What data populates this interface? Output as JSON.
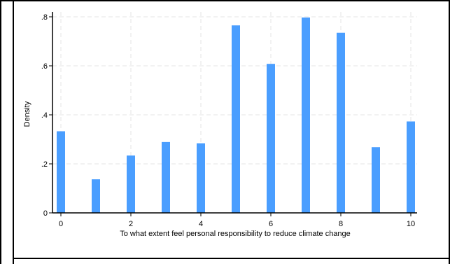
{
  "chart_data": {
    "type": "bar",
    "title": "",
    "xlabel": "To what extent feel personal responsibility to reduce climate change",
    "ylabel": "Density",
    "x": [
      0,
      1,
      2,
      3,
      4,
      5,
      6,
      7,
      8,
      9,
      10
    ],
    "values": [
      0.333,
      0.137,
      0.234,
      0.289,
      0.284,
      0.765,
      0.608,
      0.797,
      0.735,
      0.268,
      0.373
    ],
    "xlim": [
      -0.15,
      10.2
    ],
    "ylim": [
      0,
      0.8
    ],
    "x_ticks": [
      0,
      2,
      4,
      6,
      8,
      10
    ],
    "x_tick_labels": [
      "0",
      "2",
      "4",
      "6",
      "8",
      "10"
    ],
    "y_ticks": [
      0,
      0.2,
      0.4,
      0.6,
      0.8
    ],
    "y_tick_labels": [
      "0",
      ".2",
      ".4",
      ".6",
      ".8"
    ],
    "grid": true,
    "legend": "none",
    "bar_color": "#4a9eff",
    "grid_color": "#e6e6e6"
  }
}
